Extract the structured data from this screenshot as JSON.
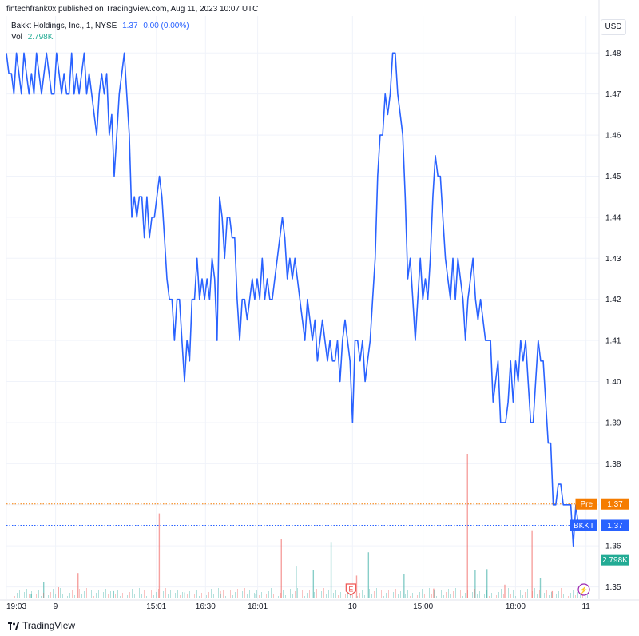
{
  "header": {
    "published": "fintechfrank0x published on TradingView.com, Aug 11, 2023 10:07 UTC",
    "symbol": "Bakkt Holdings, Inc., 1, NYSE",
    "last": "1.37",
    "change": "0.00 (0.00%)",
    "vol_label": "Vol",
    "vol_value": "2.798K",
    "currency": "USD"
  },
  "footer": {
    "brand": "TradingView"
  },
  "colors": {
    "line": "#2962ff",
    "up_volume": "#26a69a",
    "down_volume": "#ef5350",
    "pre_tag": "#f57c00",
    "symbol_tag": "#2962ff",
    "vol_tag": "#22ab94"
  },
  "chart_data": {
    "type": "line",
    "symbol": "BKKT",
    "x_tick_labels": [
      "19:03",
      "9",
      "15:01",
      "16:30",
      "18:01",
      "10",
      "15:00",
      "18:00",
      "11"
    ],
    "y_ticks": [
      1.35,
      1.36,
      1.37,
      1.38,
      1.39,
      1.4,
      1.41,
      1.42,
      1.43,
      1.44,
      1.45,
      1.46,
      1.47,
      1.48
    ],
    "y_tick_labels": [
      "1.35",
      "1.36",
      "1.37",
      "1.38",
      "1.39",
      "1.40",
      "1.41",
      "1.42",
      "1.43",
      "1.44",
      "1.45",
      "1.46",
      "1.47",
      "1.48"
    ],
    "ylim": [
      1.347,
      1.489
    ],
    "price_tags": [
      {
        "label": "Pre",
        "value": "1.37",
        "price": 1.3702
      },
      {
        "label": "BKKT",
        "value": "1.37",
        "price": 1.365
      },
      {
        "label": "",
        "value": "2.798K",
        "price": 1.3566
      }
    ],
    "events": [
      {
        "label": "E"
      },
      {
        "label": "⚡"
      }
    ],
    "series": [
      {
        "values": [
          1.48,
          1.475,
          1.475,
          1.47,
          1.48,
          1.475,
          1.47,
          1.48,
          1.475,
          1.47,
          1.475,
          1.47,
          1.48,
          1.475,
          1.47,
          1.475,
          1.48,
          1.475,
          1.47,
          1.47,
          1.48,
          1.475,
          1.47,
          1.475,
          1.47,
          1.47,
          1.48,
          1.47,
          1.475,
          1.47,
          1.475,
          1.48,
          1.47,
          1.475,
          1.47,
          1.465,
          1.46,
          1.47,
          1.475,
          1.47,
          1.475,
          1.46,
          1.465,
          1.45,
          1.46,
          1.47,
          1.475,
          1.48,
          1.47,
          1.46,
          1.44,
          1.445,
          1.44,
          1.445,
          1.445,
          1.435,
          1.445,
          1.435,
          1.44,
          1.44,
          1.445,
          1.45,
          1.445,
          1.435,
          1.425,
          1.42,
          1.42,
          1.41,
          1.42,
          1.42,
          1.41,
          1.4,
          1.41,
          1.405,
          1.42,
          1.42,
          1.43,
          1.42,
          1.425,
          1.42,
          1.425,
          1.42,
          1.43,
          1.425,
          1.41,
          1.445,
          1.44,
          1.43,
          1.44,
          1.44,
          1.435,
          1.435,
          1.42,
          1.41,
          1.42,
          1.42,
          1.415,
          1.42,
          1.425,
          1.42,
          1.425,
          1.42,
          1.43,
          1.42,
          1.425,
          1.42,
          1.42,
          1.425,
          1.43,
          1.435,
          1.44,
          1.435,
          1.425,
          1.43,
          1.425,
          1.43,
          1.425,
          1.42,
          1.415,
          1.41,
          1.42,
          1.415,
          1.41,
          1.415,
          1.405,
          1.41,
          1.415,
          1.41,
          1.405,
          1.41,
          1.405,
          1.405,
          1.41,
          1.4,
          1.41,
          1.415,
          1.41,
          1.405,
          1.39,
          1.41,
          1.41,
          1.405,
          1.41,
          1.4,
          1.405,
          1.41,
          1.42,
          1.43,
          1.45,
          1.46,
          1.46,
          1.47,
          1.465,
          1.47,
          1.48,
          1.48,
          1.47,
          1.465,
          1.46,
          1.445,
          1.425,
          1.43,
          1.42,
          1.41,
          1.42,
          1.43,
          1.42,
          1.425,
          1.42,
          1.43,
          1.445,
          1.455,
          1.45,
          1.45,
          1.44,
          1.43,
          1.425,
          1.42,
          1.43,
          1.42,
          1.43,
          1.425,
          1.42,
          1.41,
          1.42,
          1.425,
          1.43,
          1.42,
          1.415,
          1.42,
          1.415,
          1.41,
          1.41,
          1.41,
          1.395,
          1.4,
          1.405,
          1.39,
          1.39,
          1.39,
          1.395,
          1.405,
          1.395,
          1.405,
          1.4,
          1.41,
          1.405,
          1.41,
          1.4,
          1.39,
          1.39,
          1.4,
          1.41,
          1.405,
          1.405,
          1.395,
          1.385,
          1.385,
          1.37,
          1.37,
          1.375,
          1.375,
          1.37,
          1.37,
          1.37,
          1.37,
          1.36,
          1.37,
          1.365
        ]
      }
    ],
    "volume": [
      {
        "x_frac": 0.041,
        "v": 0.3,
        "up": true
      },
      {
        "x_frac": 0.062,
        "v": 1.2,
        "up": true
      },
      {
        "x_frac": 0.087,
        "v": 0.8,
        "up": false
      },
      {
        "x_frac": 0.12,
        "v": 1.9,
        "up": false
      },
      {
        "x_frac": 0.18,
        "v": 0.5,
        "up": true
      },
      {
        "x_frac": 0.257,
        "v": 6.5,
        "up": false
      },
      {
        "x_frac": 0.3,
        "v": 0.4,
        "up": true
      },
      {
        "x_frac": 0.36,
        "v": 0.5,
        "up": false
      },
      {
        "x_frac": 0.42,
        "v": 0.3,
        "up": true
      },
      {
        "x_frac": 0.463,
        "v": 4.5,
        "up": false
      },
      {
        "x_frac": 0.488,
        "v": 2.4,
        "up": true
      },
      {
        "x_frac": 0.517,
        "v": 2.1,
        "up": true
      },
      {
        "x_frac": 0.547,
        "v": 4.3,
        "up": true
      },
      {
        "x_frac": 0.59,
        "v": 1.7,
        "up": false
      },
      {
        "x_frac": 0.61,
        "v": 3.5,
        "up": true
      },
      {
        "x_frac": 0.67,
        "v": 1.8,
        "up": true
      },
      {
        "x_frac": 0.72,
        "v": 0.7,
        "up": false
      },
      {
        "x_frac": 0.777,
        "v": 11.1,
        "up": false
      },
      {
        "x_frac": 0.79,
        "v": 2.1,
        "up": true
      },
      {
        "x_frac": 0.81,
        "v": 2.2,
        "up": true
      },
      {
        "x_frac": 0.84,
        "v": 1.0,
        "up": false
      },
      {
        "x_frac": 0.886,
        "v": 5.2,
        "up": false
      },
      {
        "x_frac": 0.9,
        "v": 1.5,
        "up": true
      },
      {
        "x_frac": 0.92,
        "v": 0.5,
        "up": false
      }
    ]
  }
}
